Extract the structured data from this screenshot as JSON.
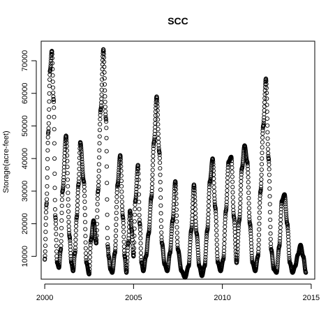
{
  "chart_data": {
    "type": "scatter",
    "title": "SCC",
    "xlabel": "",
    "ylabel": "Storage(acre-feet)",
    "xlim": [
      1999.8,
      2015.2
    ],
    "ylim": [
      3000,
      76000
    ],
    "x_ticks": [
      2000,
      2005,
      2010,
      2015
    ],
    "y_ticks": [
      10000,
      20000,
      30000,
      40000,
      50000,
      60000,
      70000
    ],
    "grid": false,
    "marker": "open-circle",
    "series": [
      {
        "x": [
          2000.0,
          2000.1,
          2000.2,
          2000.3,
          2000.4,
          2000.5,
          2000.6,
          2000.7,
          2000.8,
          2000.9,
          2001.0,
          2001.2,
          2001.4,
          2001.5,
          2001.6,
          2001.7,
          2001.8,
          2001.9,
          2002.0,
          2002.2,
          2002.35,
          2002.5,
          2002.6,
          2002.75,
          2002.9,
          2003.0,
          2003.15,
          2003.3,
          2003.45,
          2003.55,
          2003.6,
          2003.7,
          2003.8,
          2003.95,
          2004.1,
          2004.25,
          2004.4,
          2004.5,
          2004.6,
          2004.7,
          2004.8,
          2004.9,
          2005.0,
          2005.1,
          2005.25,
          2005.35,
          2005.45,
          2005.55,
          2005.7,
          2005.85,
          2006.0,
          2006.15,
          2006.3,
          2006.45,
          2006.6,
          2006.75,
          2006.9,
          2007.05,
          2007.2,
          2007.35,
          2007.5,
          2007.7,
          2007.9,
          2008.1,
          2008.25,
          2008.4,
          2008.55,
          2008.7,
          2008.85,
          2009.0,
          2009.15,
          2009.3,
          2009.45,
          2009.6,
          2009.75,
          2009.9,
          2010.05,
          2010.2,
          2010.35,
          2010.5,
          2010.65,
          2010.8,
          2010.95,
          2011.1,
          2011.25,
          2011.4,
          2011.55,
          2011.7,
          2011.85,
          2012.0,
          2012.15,
          2012.3,
          2012.45,
          2012.6,
          2012.75,
          2012.9,
          2013.05,
          2013.2,
          2013.35,
          2013.5,
          2013.65,
          2013.8,
          2013.95,
          2014.1,
          2014.25,
          2014.4,
          2014.55,
          2014.7
        ],
        "y": [
          9000,
          26000,
          48000,
          67000,
          73000,
          58000,
          22000,
          8000,
          6500,
          12000,
          30000,
          47000,
          16000,
          8000,
          5500,
          11000,
          22000,
          32000,
          45000,
          33000,
          8000,
          4500,
          15000,
          21000,
          14000,
          30000,
          55000,
          73500,
          52000,
          13000,
          10000,
          6000,
          5000,
          11000,
          32000,
          41000,
          22000,
          10000,
          5000,
          14000,
          24000,
          18000,
          10000,
          27000,
          38000,
          20000,
          8000,
          5500,
          10000,
          17000,
          28000,
          45000,
          59000,
          42000,
          14000,
          7500,
          5500,
          11000,
          21000,
          33000,
          12000,
          5500,
          3500,
          7000,
          18000,
          32000,
          17000,
          7000,
          4000,
          7000,
          18000,
          33000,
          40000,
          25000,
          8000,
          5500,
          9000,
          24000,
          39000,
          40500,
          22000,
          8000,
          21000,
          37000,
          44000,
          39000,
          20000,
          8000,
          5500,
          10000,
          30000,
          50000,
          64500,
          40000,
          12000,
          6000,
          5000,
          13000,
          27000,
          29000,
          20000,
          8000,
          5000,
          7000,
          10500,
          13500,
          10000,
          5000
        ]
      }
    ]
  }
}
